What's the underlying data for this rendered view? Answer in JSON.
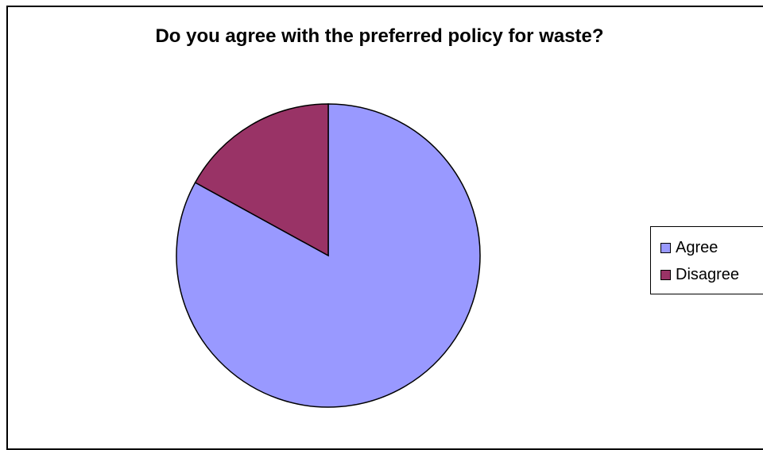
{
  "chart_data": {
    "type": "pie",
    "title": "Do you agree with the preferred policy for waste?",
    "slices": [
      {
        "label": "Agree",
        "value": 83,
        "color": "#9999ff"
      },
      {
        "label": "Disagree",
        "value": 17,
        "color": "#993366"
      }
    ],
    "start_angle_deg": 0,
    "direction": "counterclockwise",
    "legend": {
      "position": "right",
      "items": [
        "Agree",
        "Disagree"
      ]
    }
  }
}
